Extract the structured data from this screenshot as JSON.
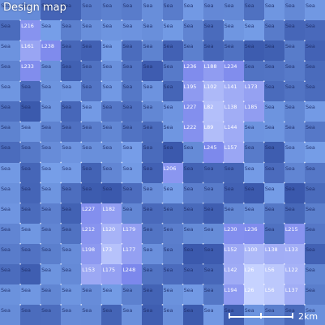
{
  "map": {
    "title": "Design map",
    "scale_label": "2km",
    "colors": {
      "sea_base": "#4a68b8",
      "land_light": "#c6d2ff",
      "land_mid": "#9eb4f0",
      "grid_dot": "#ffffff"
    },
    "rows": [
      [
        "Sea",
        "Sea",
        "Sea",
        "Sea",
        "Sea",
        "Sea",
        "Sea",
        "Sea",
        "Sea",
        "Sea",
        "Sea",
        "Sea",
        "Sea",
        "Sea",
        "Sea",
        "Sea"
      ],
      [
        "Sea",
        "L216",
        "Sea",
        "Sea",
        "Sea",
        "Sea",
        "Sea",
        "Sea",
        "Sea",
        "Sea",
        "Sea",
        "Sea",
        "Sea",
        "Sea",
        "Sea",
        "Sea"
      ],
      [
        "Sea",
        "L161",
        "L238",
        "Sea",
        "Sea",
        "Sea",
        "Sea",
        "Sea",
        "Sea",
        "Sea",
        "Sea",
        "Sea",
        "Sea",
        "Sea",
        "Sea",
        "Sea"
      ],
      [
        "Sea",
        "L233",
        "Sea",
        "Sea",
        "Sea",
        "Sea",
        "Sea",
        "Sea",
        "Sea",
        "L236",
        "L188",
        "L234",
        "Sea",
        "Sea",
        "Sea",
        "Sea"
      ],
      [
        "Sea",
        "Sea",
        "Sea",
        "Sea",
        "Sea",
        "Sea",
        "Sea",
        "Sea",
        "Sea",
        "L195",
        "L102",
        "L141",
        "L173",
        "Sea",
        "Sea",
        "Sea"
      ],
      [
        "Sea",
        "Sea",
        "Sea",
        "Sea",
        "Sea",
        "Sea",
        "Sea",
        "Sea",
        "Sea",
        "L227",
        "L82",
        "L138",
        "L185",
        "Sea",
        "Sea",
        "Sea"
      ],
      [
        "Sea",
        "Sea",
        "Sea",
        "Sea",
        "Sea",
        "Sea",
        "Sea",
        "Sea",
        "Sea",
        "L222",
        "L89",
        "L144",
        "Sea",
        "Sea",
        "Sea",
        "Sea"
      ],
      [
        "Sea",
        "Sea",
        "Sea",
        "Sea",
        "Sea",
        "Sea",
        "Sea",
        "Sea",
        "Sea",
        "Sea",
        "L245",
        "L157",
        "Sea",
        "Sea",
        "Sea",
        "Sea"
      ],
      [
        "Sea",
        "Sea",
        "Sea",
        "Sea",
        "Sea",
        "Sea",
        "Sea",
        "Sea",
        "L206",
        "Sea",
        "Sea",
        "Sea",
        "Sea",
        "Sea",
        "Sea",
        "Sea"
      ],
      [
        "Sea",
        "Sea",
        "Sea",
        "Sea",
        "Sea",
        "Sea",
        "Sea",
        "Sea",
        "Sea",
        "Sea",
        "Sea",
        "Sea",
        "Sea",
        "Sea",
        "Sea",
        "Sea"
      ],
      [
        "Sea",
        "Sea",
        "Sea",
        "Sea",
        "L227",
        "L182",
        "Sea",
        "Sea",
        "Sea",
        "Sea",
        "Sea",
        "Sea",
        "Sea",
        "Sea",
        "Sea",
        "Sea"
      ],
      [
        "Sea",
        "Sea",
        "Sea",
        "Sea",
        "L212",
        "L120",
        "L179",
        "Sea",
        "Sea",
        "Sea",
        "Sea",
        "L230",
        "L236",
        "Sea",
        "L215",
        "Sea"
      ],
      [
        "Sea",
        "Sea",
        "Sea",
        "Sea",
        "L198",
        "L73",
        "L177",
        "Sea",
        "Sea",
        "Sea",
        "Sea",
        "L152",
        "L100",
        "L138",
        "L133",
        "Sea"
      ],
      [
        "Sea",
        "Sea",
        "Sea",
        "Sea",
        "L153",
        "L175",
        "L248",
        "Sea",
        "Sea",
        "Sea",
        "Sea",
        "L142",
        "L26",
        "L56",
        "L122",
        "Sea"
      ],
      [
        "Sea",
        "Sea",
        "Sea",
        "Sea",
        "Sea",
        "Sea",
        "Sea",
        "Sea",
        "Sea",
        "Sea",
        "Sea",
        "L194",
        "L26",
        "L56",
        "L137",
        "Sea"
      ],
      [
        "Sea",
        "Sea",
        "Sea",
        "Sea",
        "Sea",
        "Sea",
        "Sea",
        "Sea",
        "Sea",
        "Sea",
        "Sea",
        "Sea",
        "Sea",
        "Sea",
        "Sea",
        "Sea"
      ]
    ]
  }
}
